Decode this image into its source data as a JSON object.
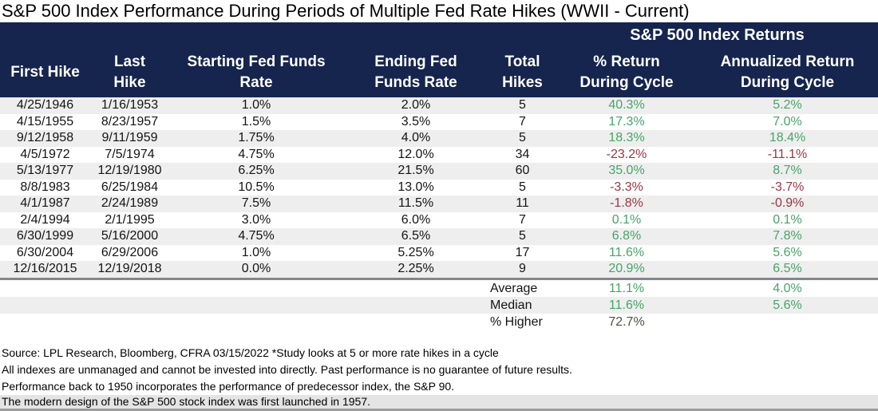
{
  "title": "S&P 500 Index Performance During Periods of Multiple Fed Rate Hikes (WWII - Current)",
  "colors": {
    "header_navy": "#16254e",
    "positive_green": "#47a468",
    "negative_red": "#9c3540",
    "dark_green": "#475640",
    "row_stripe": "#eeeeee",
    "footnote_highlight": "#e4e4e4"
  },
  "chart_data": {
    "type": "table",
    "title": "S&P 500 Index Performance During Periods of Multiple Fed Rate Hikes (WWII - Current)",
    "group_header": "S&P 500 Index Returns",
    "columns": [
      "First Hike",
      "Last\nHike",
      "Starting Fed Funds\nRate",
      "Ending Fed\nFunds Rate",
      "Total\nHikes",
      "% Return\nDuring Cycle",
      "Annualized Return\nDuring Cycle"
    ],
    "rows": [
      [
        "4/25/1946",
        "1/16/1953",
        "1.0%",
        "2.0%",
        "5",
        "40.3%",
        "5.2%"
      ],
      [
        "4/15/1955",
        "8/23/1957",
        "1.5%",
        "3.5%",
        "7",
        "17.3%",
        "7.0%"
      ],
      [
        "9/12/1958",
        "9/11/1959",
        "1.75%",
        "4.0%",
        "5",
        "18.3%",
        "18.4%"
      ],
      [
        "4/5/1972",
        "7/5/1974",
        "4.75%",
        "12.0%",
        "34",
        "-23.2%",
        "-11.1%"
      ],
      [
        "5/13/1977",
        "12/19/1980",
        "6.25%",
        "21.5%",
        "60",
        "35.0%",
        "8.7%"
      ],
      [
        "8/8/1983",
        "6/25/1984",
        "10.5%",
        "13.0%",
        "5",
        "-3.3%",
        "-3.7%"
      ],
      [
        "4/1/1987",
        "2/24/1989",
        "7.5%",
        "11.5%",
        "11",
        "-1.8%",
        "-0.9%"
      ],
      [
        "2/4/1994",
        "2/1/1995",
        "3.0%",
        "6.0%",
        "7",
        "0.1%",
        "0.1%"
      ],
      [
        "6/30/1999",
        "5/16/2000",
        "4.75%",
        "6.5%",
        "5",
        "6.8%",
        "7.8%"
      ],
      [
        "6/30/2004",
        "6/29/2006",
        "1.0%",
        "5.25%",
        "17",
        "11.6%",
        "5.6%"
      ],
      [
        "12/16/2015",
        "12/19/2018",
        "0.0%",
        "2.25%",
        "9",
        "20.9%",
        "6.5%"
      ]
    ],
    "summary_rows": [
      {
        "label": "Average",
        "pct_return": "11.1%",
        "annualized_return": "4.0%",
        "emphasis": "normal"
      },
      {
        "label": "Median",
        "pct_return": "11.6%",
        "annualized_return": "5.6%",
        "emphasis": "normal"
      },
      {
        "label": "% Higher",
        "pct_return": "72.7%",
        "annualized_return": "",
        "emphasis": "dark"
      }
    ]
  },
  "footnotes": [
    "Source: LPL Research, Bloomberg, CFRA 03/15/2022   *Study looks at 5 or more rate hikes in a cycle",
    "All indexes are unmanaged and cannot be invested into directly. Past performance is no guarantee of future results.",
    "Performance back to 1950 incorporates the performance of predecessor index, the S&P 90.",
    "The modern design of the S&P 500 stock index was first launched in 1957."
  ]
}
